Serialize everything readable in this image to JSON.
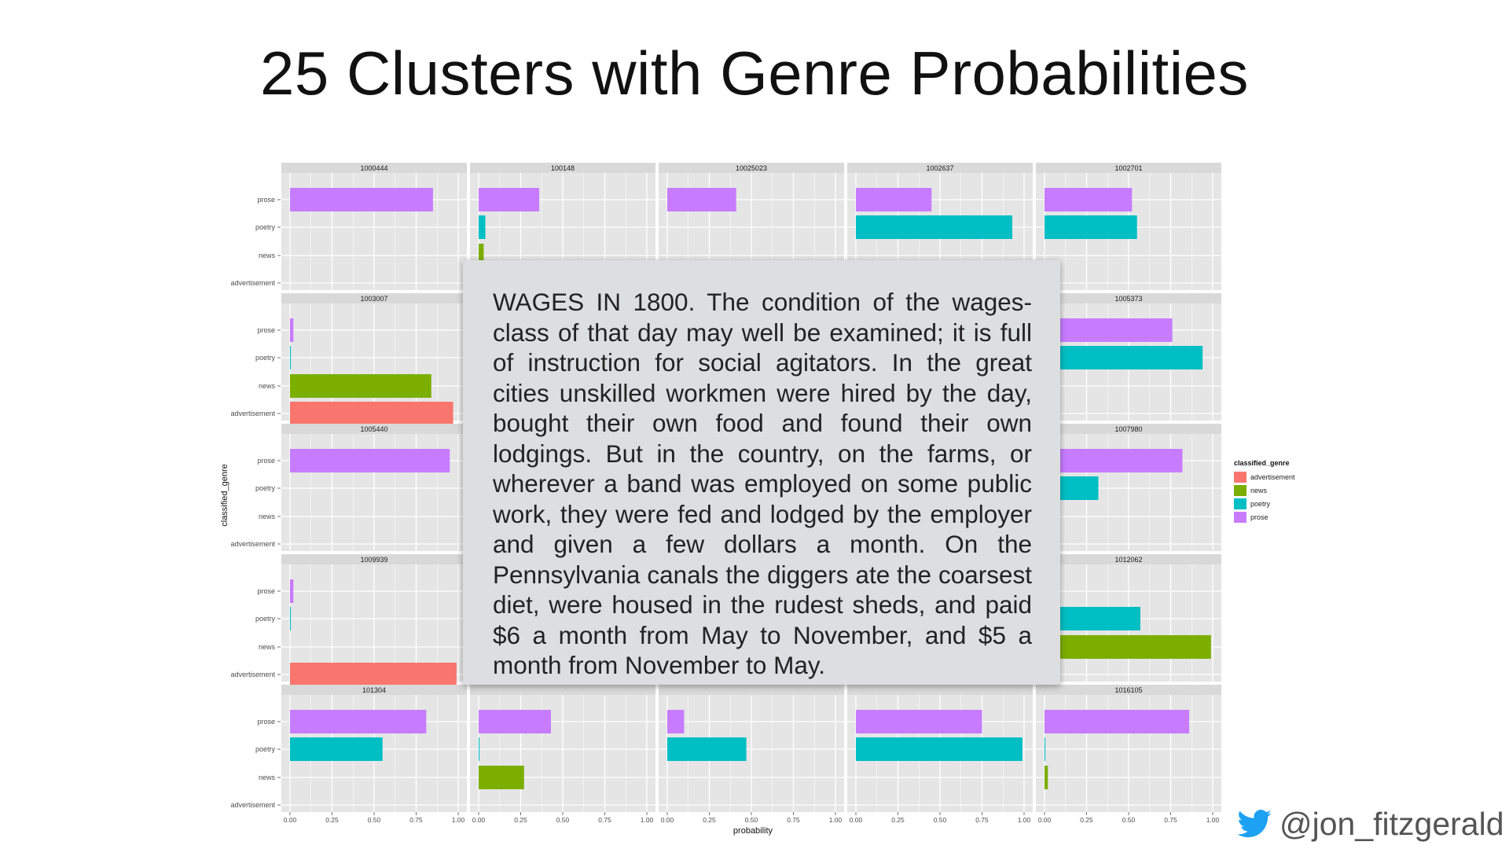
{
  "slide": {
    "title": "25 Clusters with Genre Probabilities",
    "quote": "WAGES IN 1800. The condition of the wages-class of that day may well be examined; it is full of instruction for social agitators. In the great cities unskilled workmen were hired by the day, bought their own food and found their own lodgings. But in the country, on the farms, or wherever a band was employed on some public work, they were fed and lodged by the employer and given a few dollars a month. On the Pennsylvania canals the diggers ate the coarsest diet, were housed in the rudest sheds, and paid $6 a month from May to November, and $5 a month from November to May.",
    "handle": "@jon_fitzgerald",
    "handle_icon": "twitter-bird-icon",
    "handle_color": "#1da1f2"
  },
  "chart_data": {
    "type": "bar",
    "orientation": "horizontal",
    "facets": "5x5",
    "xlabel": "probability",
    "ylabel": "classified_genre",
    "xlim": [
      0,
      1
    ],
    "x_ticks": [
      "0.00",
      "0.25",
      "0.50",
      "0.75",
      "1.00"
    ],
    "categories": [
      "prose",
      "poetry",
      "news",
      "advertisement"
    ],
    "legend": {
      "title": "classified_genre",
      "position": "right",
      "entries": [
        "advertisement",
        "news",
        "poetry",
        "prose"
      ]
    },
    "colors": {
      "advertisement": "#f8766d",
      "news": "#7cae00",
      "poetry": "#00bfc4",
      "prose": "#c77cff"
    },
    "panels": [
      {
        "id": "1000444",
        "prose": 0.85,
        "poetry": null,
        "news": null,
        "advertisement": null
      },
      {
        "id": "100148",
        "prose": 0.36,
        "poetry": 0.04,
        "news": 0.03,
        "advertisement": null
      },
      {
        "id": "10025023",
        "prose": 0.41,
        "poetry": null,
        "news": null,
        "advertisement": null
      },
      {
        "id": "1002637",
        "prose": 0.45,
        "poetry": 0.93,
        "news": null,
        "advertisement": null
      },
      {
        "id": "1002701",
        "prose": 0.52,
        "poetry": 0.55,
        "news": null,
        "advertisement": null
      },
      {
        "id": "1003007",
        "prose": 0.02,
        "poetry": 0.005,
        "news": 0.84,
        "advertisement": 0.97
      },
      {
        "id": "",
        "prose": null,
        "poetry": null,
        "news": null,
        "advertisement": null
      },
      {
        "id": "",
        "prose": null,
        "poetry": null,
        "news": null,
        "advertisement": null
      },
      {
        "id": "",
        "prose": null,
        "poetry": null,
        "news": null,
        "advertisement": null
      },
      {
        "id": "1005373",
        "prose": 0.76,
        "poetry": 0.94,
        "news": null,
        "advertisement": null
      },
      {
        "id": "1005440",
        "prose": 0.95,
        "poetry": null,
        "news": null,
        "advertisement": null
      },
      {
        "id": "",
        "prose": null,
        "poetry": null,
        "news": null,
        "advertisement": null
      },
      {
        "id": "",
        "prose": null,
        "poetry": null,
        "news": null,
        "advertisement": null
      },
      {
        "id": "",
        "prose": null,
        "poetry": null,
        "news": null,
        "advertisement": null
      },
      {
        "id": "1007980",
        "prose": 0.82,
        "poetry": 0.32,
        "news": null,
        "advertisement": null
      },
      {
        "id": "1009939",
        "prose": 0.02,
        "poetry": 0.005,
        "news": null,
        "advertisement": 0.99
      },
      {
        "id": "",
        "prose": null,
        "poetry": null,
        "news": null,
        "advertisement": null
      },
      {
        "id": "",
        "prose": null,
        "poetry": null,
        "news": null,
        "advertisement": null
      },
      {
        "id": "",
        "prose": null,
        "poetry": null,
        "news": null,
        "advertisement": null
      },
      {
        "id": "1012062",
        "prose": null,
        "poetry": 0.57,
        "news": 0.99,
        "advertisement": null
      },
      {
        "id": "101304",
        "prose": 0.81,
        "poetry": 0.55,
        "news": null,
        "advertisement": null
      },
      {
        "id": "",
        "prose": 0.43,
        "poetry": 0.005,
        "news": 0.27,
        "advertisement": null
      },
      {
        "id": "",
        "prose": 0.1,
        "poetry": 0.47,
        "news": null,
        "advertisement": null
      },
      {
        "id": "",
        "prose": 0.75,
        "poetry": 0.99,
        "news": null,
        "advertisement": null
      },
      {
        "id": "1016105",
        "prose": 0.86,
        "poetry": 0.005,
        "news": 0.02,
        "advertisement": null
      }
    ]
  }
}
